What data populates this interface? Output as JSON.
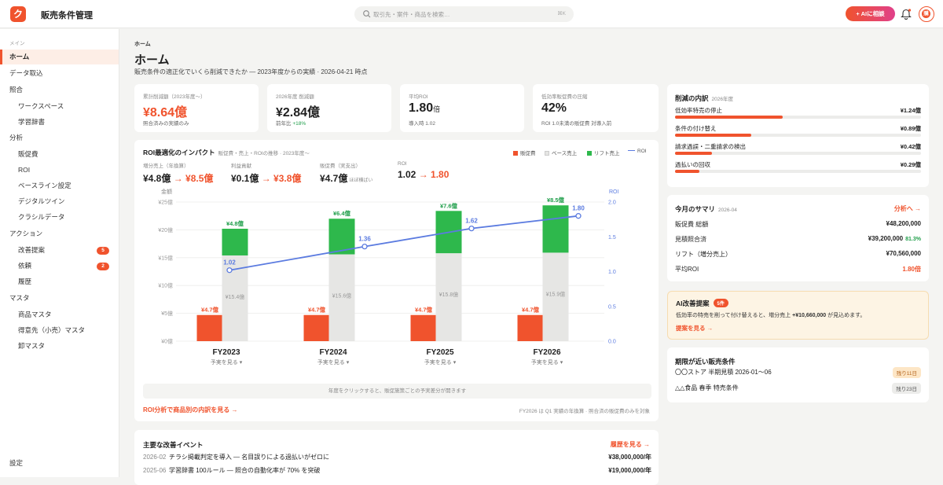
{
  "app": {
    "logo_char": "ク",
    "title": "販売条件管理"
  },
  "search": {
    "placeholder": "取引先・案件・商品を検索…",
    "shortcut": "⌘K"
  },
  "header": {
    "ai_button": "+ AIに相談",
    "avatar_initial": "購"
  },
  "sidebar": {
    "groups": [
      {
        "label": "メイン",
        "items": [
          {
            "label": "ホーム",
            "active": true,
            "level": "top"
          },
          {
            "label": "データ取込",
            "level": "top"
          }
        ]
      },
      {
        "label": "",
        "items": [
          {
            "label": "照合",
            "level": "top"
          },
          {
            "label": "ワークスペース",
            "level": "sub"
          },
          {
            "label": "学習辞書",
            "level": "sub"
          },
          {
            "label": "分析",
            "level": "top"
          },
          {
            "label": "販促費",
            "level": "sub"
          },
          {
            "label": "ROI",
            "level": "sub"
          },
          {
            "label": "ベースライン設定",
            "level": "sub"
          },
          {
            "label": "デジタルツイン",
            "level": "sub"
          },
          {
            "label": "クラシルデータ",
            "level": "sub"
          },
          {
            "label": "アクション",
            "level": "top"
          },
          {
            "label": "改善提案",
            "level": "sub",
            "badge": "5"
          },
          {
            "label": "依頼",
            "level": "sub",
            "badge": "2"
          },
          {
            "label": "履歴",
            "level": "sub"
          },
          {
            "label": "マスタ",
            "level": "top"
          },
          {
            "label": "商品マスタ",
            "level": "sub"
          },
          {
            "label": "得意先（小売）マスタ",
            "level": "sub"
          },
          {
            "label": "卸マスタ",
            "level": "sub"
          }
        ]
      }
    ],
    "settings": "設定"
  },
  "page": {
    "breadcrumb": "ホーム",
    "title": "ホーム",
    "subtitle": "販売条件の適正化でいくら削減できたか — 2023年度からの実績 · 2026-04-21 時点"
  },
  "kpis": [
    {
      "label": "累計削減額（2023年度〜）",
      "value": "¥8.64億",
      "note": "照合済みの実績のみ",
      "accent": true
    },
    {
      "label": "2026年度 削減額",
      "value": "¥2.84億",
      "note_prefix": "前年比",
      "note_value": "+18%"
    },
    {
      "label": "平均ROI",
      "value": "1.80",
      "unit": "倍",
      "note": "導入時 1.02"
    },
    {
      "label": "低効率販促費の圧縮",
      "value": "42%",
      "note": "ROI 1.0未満の販促費 対導入前"
    }
  ],
  "impact": {
    "title": "ROI最適化のインパクト",
    "subtitle": "販促費・売上・ROIの推移 · 2023年度〜",
    "legend": [
      "販促費",
      "ベース売上",
      "リフト売上",
      "ROI"
    ],
    "metrics": [
      {
        "label": "増分売上（年換算）",
        "from": "¥4.8億",
        "to": "¥8.5億"
      },
      {
        "label": "利益貢献",
        "from": "¥0.1億",
        "to": "¥3.8億"
      },
      {
        "label": "販促費（実支出）",
        "from": "¥4.7億",
        "note": "ほぼ横ばい"
      },
      {
        "label": "ROI",
        "from": "1.02",
        "to": "1.80"
      }
    ],
    "hint": "年度をクリックすると、販促施策ごとの予実差分が開きます",
    "link": "ROI分析で商品別の内訳を見る →",
    "footnote": "FY2026 は Q1 実績の年換算 · 照合済の販促費のみを対象"
  },
  "chart_data": {
    "type": "bar",
    "categories": [
      "FY2023",
      "FY2024",
      "FY2025",
      "FY2026"
    ],
    "category_sublabel": "予実を見る ▾",
    "ylabel": "金額",
    "y2label": "ROI",
    "ylim": [
      0,
      25
    ],
    "y2lim": [
      0,
      2
    ],
    "yticks": [
      "¥0億",
      "¥5億",
      "¥10億",
      "¥15億",
      "¥20億",
      "¥25億"
    ],
    "y2ticks": [
      "0.0",
      "0.5",
      "1.0",
      "1.5",
      "2.0"
    ],
    "series": [
      {
        "name": "販促費",
        "values": [
          4.7,
          4.7,
          4.7,
          4.7
        ],
        "labels": [
          "¥4.7億",
          "¥4.7億",
          "¥4.7億",
          "¥4.7億"
        ],
        "color": "#f0532d"
      },
      {
        "name": "ベース売上",
        "values": [
          15.4,
          15.6,
          15.8,
          15.9
        ],
        "labels": [
          "¥15.4億",
          "¥15.6億",
          "¥15.8億",
          "¥15.9億"
        ],
        "color": "#e6e6e4"
      },
      {
        "name": "リフト売上",
        "values": [
          4.8,
          6.4,
          7.6,
          8.5
        ],
        "labels": [
          "¥4.8億",
          "¥6.4億",
          "¥7.6億",
          "¥8.5億"
        ],
        "color": "#2eb84c"
      },
      {
        "name": "ROI",
        "values": [
          1.02,
          1.36,
          1.62,
          1.8
        ],
        "labels": [
          "1.02",
          "1.36",
          "1.62",
          "1.80"
        ],
        "color": "#5b7be0"
      }
    ],
    "grid": true
  },
  "events": {
    "title": "主要な改善イベント",
    "link": "履歴を見る →",
    "rows": [
      {
        "date": "2026-02",
        "text": "チラシ掲載判定を導入 — 名目誤りによる過払いがゼロに",
        "amount": "¥38,000,000/年"
      },
      {
        "date": "2025-06",
        "text": "学習辞書 100ルール — 照合の自動化率が 70% を突破",
        "amount": "¥19,000,000/年"
      }
    ]
  },
  "breakdown": {
    "title": "削減の内訳",
    "subtitle": "2026年度",
    "rows": [
      {
        "label": "低効率特売の停止",
        "value": "¥1.24億",
        "ratio": 0.44
      },
      {
        "label": "条件の付け替え",
        "value": "¥0.89億",
        "ratio": 0.31
      },
      {
        "label": "請求過誤・二重請求の検出",
        "value": "¥0.42億",
        "ratio": 0.15
      },
      {
        "label": "過払いの回収",
        "value": "¥0.29億",
        "ratio": 0.1
      }
    ]
  },
  "summary": {
    "title": "今月のサマリ",
    "subtitle": "2026-04",
    "link": "分析へ →",
    "rows": [
      {
        "label": "販促費 総額",
        "value": "¥48,200,000"
      },
      {
        "label": "見積照合済",
        "value": "¥39,200,000",
        "pct": "81.3%"
      },
      {
        "label": "リフト（増分売上）",
        "value": "¥70,560,000"
      },
      {
        "label": "平均ROI",
        "value": "1.80倍",
        "accent": true
      }
    ]
  },
  "ai_suggestion": {
    "title": "AI改善提案",
    "badge": "5件",
    "body_prefix": "低効率の特売を削って付け替えると、増分売上",
    "body_amount": "+¥10,660,000",
    "body_suffix": "が見込めます。",
    "link": "提案を見る →"
  },
  "deadlines": {
    "title": "期限が近い販売条件",
    "rows": [
      {
        "label": "〇〇ストア 半期見積 2026-01〜06",
        "badge": "残り11日",
        "warn": true
      },
      {
        "label": "△△食品 春季 特売条件",
        "badge": "残り23日",
        "warn": false
      }
    ]
  },
  "colors": {
    "accent": "#f0532d",
    "green": "#2eb84c",
    "roi_line": "#5b7be0",
    "base_bar": "#e6e6e4"
  }
}
